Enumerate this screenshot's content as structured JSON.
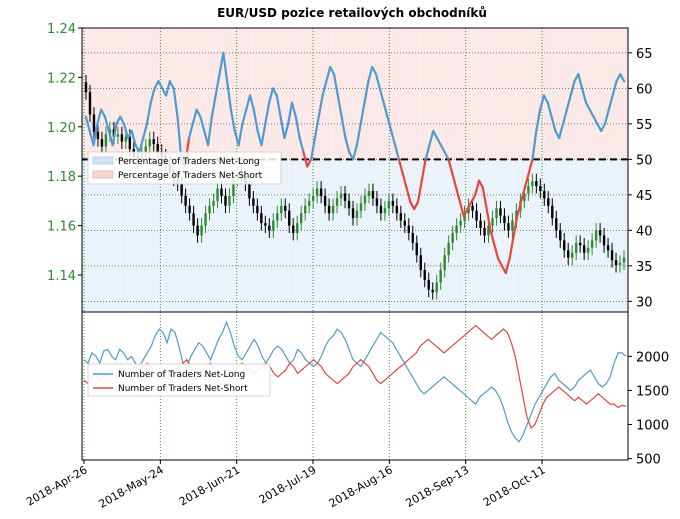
{
  "chart_data": [
    {
      "type": "candlestick",
      "title": "EUR/USD pozice retailových obchodníků",
      "x_tick_labels": [
        "2018-Apr-26",
        "2018-May-24",
        "2018-Jun-21",
        "2018-Jul-19",
        "2018-Aug-16",
        "2018-Sep-13",
        "2018-Oct-11"
      ],
      "x_range": [
        "2018-04-26",
        "2018-10-31"
      ],
      "left_axis": {
        "ticks": [
          "1.24",
          "1.22",
          "1.20",
          "1.18",
          "1.16",
          "1.14"
        ],
        "range": [
          1.125,
          1.24
        ],
        "color": "#2e8b2e"
      },
      "right_axis": {
        "ticks": [
          "65",
          "60",
          "55",
          "50",
          "45",
          "40",
          "35",
          "30"
        ],
        "range": [
          28.5,
          68.5
        ]
      },
      "reference_line": 50,
      "legend": [
        "Percentage of Traders Net-Long",
        "Percentage of Traders Net-Short"
      ],
      "legend_position": "middle-left",
      "grid": "dotted green",
      "colors": {
        "net_long": "#4d9bd1",
        "net_short": "#e8453c",
        "bull_candle": "#2e8b2e",
        "bear_candle": "#000000",
        "long_fill": "#cfe3f5",
        "short_fill": "#f8d3cf"
      },
      "price_close": [
        1.214,
        1.205,
        1.198,
        1.195,
        1.192,
        1.197,
        1.199,
        1.196,
        1.197,
        1.194,
        1.196,
        1.191,
        1.188,
        1.186,
        1.189,
        1.192,
        1.195,
        1.193,
        1.19,
        1.188,
        1.185,
        1.182,
        1.179,
        1.177,
        1.172,
        1.168,
        1.165,
        1.16,
        1.156,
        1.16,
        1.165,
        1.168,
        1.17,
        1.175,
        1.172,
        1.168,
        1.172,
        1.179,
        1.181,
        1.18,
        1.177,
        1.171,
        1.168,
        1.165,
        1.161,
        1.16,
        1.158,
        1.162,
        1.165,
        1.168,
        1.166,
        1.16,
        1.157,
        1.161,
        1.165,
        1.168,
        1.17,
        1.172,
        1.175,
        1.172,
        1.168,
        1.165,
        1.168,
        1.171,
        1.173,
        1.17,
        1.167,
        1.163,
        1.166,
        1.169,
        1.172,
        1.174,
        1.171,
        1.168,
        1.165,
        1.167,
        1.17,
        1.168,
        1.165,
        1.162,
        1.16,
        1.157,
        1.153,
        1.148,
        1.142,
        1.138,
        1.134,
        1.133,
        1.137,
        1.142,
        1.148,
        1.153,
        1.157,
        1.16,
        1.162,
        1.165,
        1.168,
        1.166,
        1.162,
        1.159,
        1.156,
        1.16,
        1.163,
        1.167,
        1.164,
        1.161,
        1.158,
        1.162,
        1.166,
        1.17,
        1.173,
        1.176,
        1.178,
        1.176,
        1.174,
        1.171,
        1.168,
        1.163,
        1.158,
        1.154,
        1.15,
        1.147,
        1.149,
        1.153,
        1.152,
        1.149,
        1.151,
        1.154,
        1.158,
        1.156,
        1.152,
        1.15,
        1.146,
        1.144,
        1.145,
        1.147
      ],
      "series": [
        {
          "name": "Percentage of Traders Net-Long",
          "values": [
            56,
            54,
            52,
            55,
            57,
            56,
            54,
            52,
            55,
            56,
            55,
            53,
            54,
            52,
            51,
            53,
            55,
            58,
            60,
            61,
            60,
            59,
            61,
            60,
            56,
            50,
            49,
            53,
            55,
            57,
            56,
            54,
            52,
            56,
            59,
            62,
            65,
            61,
            57,
            54,
            52,
            55,
            57,
            59,
            57,
            54,
            52,
            55,
            58,
            60,
            59,
            56,
            53,
            55,
            58,
            56,
            53,
            51,
            49,
            50,
            53,
            56,
            59,
            61,
            63,
            62,
            59,
            56,
            53,
            51,
            50,
            52,
            55,
            58,
            61,
            63,
            62,
            60,
            58,
            56,
            54,
            52,
            50,
            48,
            46,
            44,
            43,
            44,
            47,
            50,
            52,
            54,
            53,
            52,
            51,
            50,
            48,
            46,
            44,
            42,
            43,
            44,
            45,
            47,
            46,
            43,
            40,
            38,
            36,
            35,
            34,
            36,
            39,
            42,
            44,
            46,
            48,
            50,
            54,
            57,
            59,
            58,
            56,
            54,
            53,
            55,
            57,
            59,
            61,
            62,
            60,
            58,
            57,
            56,
            55,
            54,
            55,
            57,
            59,
            61,
            62,
            61
          ]
        }
      ]
    },
    {
      "type": "line",
      "y_ticks": [
        "2000",
        "1500",
        "1000",
        "500"
      ],
      "y_range": [
        480,
        2650
      ],
      "legend": [
        "Number of Traders Net-Long",
        "Number of Traders Net-Short"
      ],
      "legend_position": "middle-left",
      "series": [
        {
          "name": "Number of Traders Net-Long",
          "values": [
            1950,
            1900,
            2050,
            2000,
            1900,
            2080,
            2100,
            2000,
            1950,
            2100,
            2050,
            1950,
            2000,
            1900,
            1850,
            1950,
            2050,
            2150,
            2300,
            2400,
            2350,
            2200,
            2400,
            2350,
            2150,
            1900,
            1850,
            2000,
            2100,
            2200,
            2150,
            2050,
            1950,
            2100,
            2250,
            2350,
            2500,
            2350,
            2150,
            2000,
            1950,
            2050,
            2150,
            2250,
            2150,
            2000,
            1900,
            2000,
            2100,
            2150,
            2100,
            2000,
            1900,
            1950,
            2100,
            2050,
            1950,
            1900,
            1850,
            1900,
            2000,
            2150,
            2250,
            2300,
            2400,
            2350,
            2250,
            2100,
            1950,
            1900,
            1850,
            1950,
            2050,
            2150,
            2250,
            2350,
            2300,
            2250,
            2200,
            2100,
            2000,
            1900,
            1800,
            1700,
            1600,
            1500,
            1450,
            1500,
            1550,
            1600,
            1650,
            1700,
            1650,
            1600,
            1550,
            1500,
            1450,
            1400,
            1350,
            1300,
            1400,
            1450,
            1500,
            1550,
            1500,
            1400,
            1250,
            1050,
            900,
            800,
            750,
            850,
            1000,
            1150,
            1300,
            1400,
            1500,
            1600,
            1700,
            1750,
            1650,
            1600,
            1550,
            1500,
            1550,
            1650,
            1700,
            1750,
            1800,
            1700,
            1600,
            1550,
            1600,
            1700,
            1900,
            2050,
            2050,
            2000
          ]
        },
        {
          "name": "Number of Traders Net-Short",
          "values": [
            1650,
            1600,
            1700,
            1750,
            1650,
            1700,
            1750,
            1800,
            1700,
            1750,
            1800,
            1750,
            1800,
            1850,
            1800,
            1850,
            1900,
            1850,
            1750,
            1700,
            1750,
            1800,
            1700,
            1750,
            1850,
            1900,
            1950,
            1850,
            1800,
            1750,
            1800,
            1850,
            1900,
            1800,
            1750,
            1700,
            1550,
            1650,
            1750,
            1850,
            1900,
            1850,
            1800,
            1750,
            1800,
            1850,
            1900,
            1850,
            1750,
            1700,
            1750,
            1800,
            1900,
            1850,
            1750,
            1800,
            1850,
            1900,
            1950,
            1900,
            1850,
            1750,
            1700,
            1650,
            1600,
            1650,
            1700,
            1750,
            1850,
            1900,
            1950,
            1900,
            1850,
            1750,
            1650,
            1600,
            1650,
            1700,
            1750,
            1800,
            1850,
            1900,
            1950,
            2000,
            2050,
            2150,
            2200,
            2250,
            2200,
            2150,
            2100,
            2050,
            2100,
            2150,
            2200,
            2250,
            2300,
            2350,
            2400,
            2450,
            2400,
            2350,
            2300,
            2250,
            2300,
            2350,
            2400,
            2350,
            2200,
            2000,
            1700,
            1400,
            1100,
            950,
            1000,
            1150,
            1300,
            1400,
            1450,
            1500,
            1550,
            1500,
            1450,
            1400,
            1350,
            1400,
            1350,
            1300,
            1350,
            1400,
            1450,
            1400,
            1350,
            1300,
            1300,
            1250,
            1280,
            1270
          ]
        }
      ]
    }
  ]
}
